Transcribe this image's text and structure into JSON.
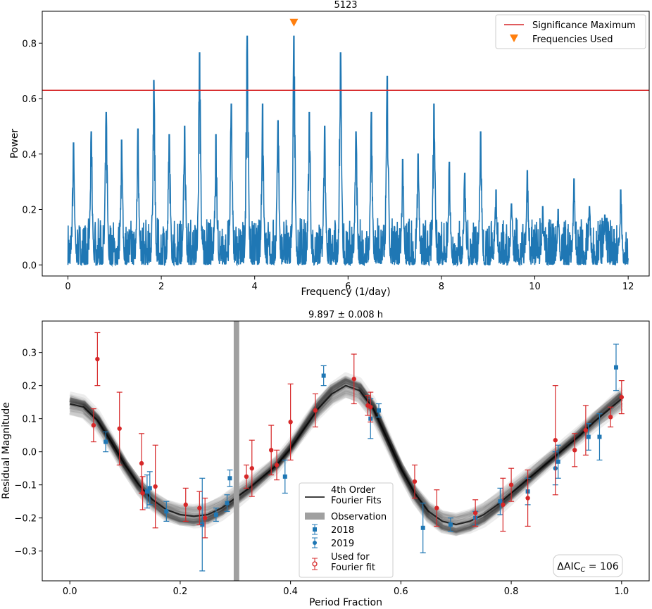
{
  "chart_data": [
    {
      "type": "line",
      "title": "5123",
      "xlabel": "Frequency (1/day)",
      "ylabel": "Power",
      "xlim": [
        -0.55,
        12.45
      ],
      "ylim": [
        -0.04,
        0.915
      ],
      "xticks": [
        0,
        2,
        4,
        6,
        8,
        10,
        12
      ],
      "xtick_labels": [
        "0",
        "2",
        "4",
        "6",
        "8",
        "10",
        "12"
      ],
      "yticks": [
        0.0,
        0.2,
        0.4,
        0.6,
        0.8
      ],
      "ytick_labels": [
        "0.0",
        "0.2",
        "0.4",
        "0.6",
        "0.8"
      ],
      "series_color": "#1f77b4",
      "baseline_max": 0.17,
      "peaks": [
        {
          "x": 0.12,
          "y": 0.44
        },
        {
          "x": 0.5,
          "y": 0.48
        },
        {
          "x": 0.82,
          "y": 0.55
        },
        {
          "x": 1.15,
          "y": 0.45
        },
        {
          "x": 1.5,
          "y": 0.49
        },
        {
          "x": 1.84,
          "y": 0.665
        },
        {
          "x": 2.17,
          "y": 0.47
        },
        {
          "x": 2.5,
          "y": 0.5
        },
        {
          "x": 2.82,
          "y": 0.765
        },
        {
          "x": 3.17,
          "y": 0.47
        },
        {
          "x": 3.5,
          "y": 0.58
        },
        {
          "x": 3.84,
          "y": 0.825
        },
        {
          "x": 4.17,
          "y": 0.58
        },
        {
          "x": 4.5,
          "y": 0.52
        },
        {
          "x": 4.84,
          "y": 0.825
        },
        {
          "x": 5.17,
          "y": 0.55
        },
        {
          "x": 5.5,
          "y": 0.5
        },
        {
          "x": 5.84,
          "y": 0.765
        },
        {
          "x": 6.17,
          "y": 0.48
        },
        {
          "x": 6.5,
          "y": 0.55
        },
        {
          "x": 6.84,
          "y": 0.68
        },
        {
          "x": 7.17,
          "y": 0.38
        },
        {
          "x": 7.5,
          "y": 0.4
        },
        {
          "x": 7.84,
          "y": 0.58
        },
        {
          "x": 8.17,
          "y": 0.37
        },
        {
          "x": 8.5,
          "y": 0.33
        },
        {
          "x": 8.84,
          "y": 0.48
        },
        {
          "x": 9.17,
          "y": 0.27
        },
        {
          "x": 9.5,
          "y": 0.22
        },
        {
          "x": 9.84,
          "y": 0.34
        },
        {
          "x": 10.17,
          "y": 0.21
        },
        {
          "x": 10.5,
          "y": 0.2
        },
        {
          "x": 10.84,
          "y": 0.31
        },
        {
          "x": 11.17,
          "y": 0.21
        },
        {
          "x": 11.5,
          "y": 0.18
        },
        {
          "x": 11.84,
          "y": 0.27
        }
      ],
      "significance_maximum": 0.63,
      "significance_color": "#d62728",
      "frequencies_used": [
        {
          "x": 4.84,
          "y": 0.875
        }
      ],
      "marker_color": "#ff7f0e",
      "legend": {
        "location": "upper right",
        "entries": [
          "Significance Maximum",
          "Frequencies Used"
        ]
      }
    },
    {
      "type": "scatter",
      "title": "9.897 ± 0.008 h",
      "xlabel": "Period Fraction",
      "ylabel": "Residual Magnitude",
      "xlim": [
        -0.05,
        1.05
      ],
      "ylim": [
        -0.39,
        0.395
      ],
      "xticks": [
        0.0,
        0.2,
        0.4,
        0.6,
        0.8,
        1.0
      ],
      "xtick_labels": [
        "0.0",
        "0.2",
        "0.4",
        "0.6",
        "0.8",
        "1.0"
      ],
      "yticks": [
        -0.3,
        -0.2,
        -0.1,
        0.0,
        0.1,
        0.2,
        0.3
      ],
      "ytick_labels": [
        "−0.3",
        "−0.2",
        "−0.1",
        "0.0",
        "0.1",
        "0.2",
        "0.3"
      ],
      "fourier_fit": {
        "order": 4,
        "mean_curve": [
          [
            0.0,
            0.145
          ],
          [
            0.025,
            0.135
          ],
          [
            0.05,
            0.095
          ],
          [
            0.075,
            0.03
          ],
          [
            0.1,
            -0.04
          ],
          [
            0.125,
            -0.1
          ],
          [
            0.15,
            -0.145
          ],
          [
            0.175,
            -0.175
          ],
          [
            0.2,
            -0.19
          ],
          [
            0.225,
            -0.195
          ],
          [
            0.25,
            -0.19
          ],
          [
            0.275,
            -0.17
          ],
          [
            0.3,
            -0.14
          ],
          [
            0.325,
            -0.11
          ],
          [
            0.35,
            -0.075
          ],
          [
            0.375,
            -0.04
          ],
          [
            0.4,
            0.01
          ],
          [
            0.425,
            0.07
          ],
          [
            0.45,
            0.13
          ],
          [
            0.475,
            0.175
          ],
          [
            0.5,
            0.2
          ],
          [
            0.525,
            0.185
          ],
          [
            0.55,
            0.13
          ],
          [
            0.575,
            0.04
          ],
          [
            0.6,
            -0.05
          ],
          [
            0.625,
            -0.125
          ],
          [
            0.65,
            -0.18
          ],
          [
            0.675,
            -0.21
          ],
          [
            0.7,
            -0.22
          ],
          [
            0.725,
            -0.21
          ],
          [
            0.75,
            -0.19
          ],
          [
            0.775,
            -0.16
          ],
          [
            0.8,
            -0.125
          ],
          [
            0.825,
            -0.09
          ],
          [
            0.85,
            -0.055
          ],
          [
            0.875,
            -0.02
          ],
          [
            0.9,
            0.015
          ],
          [
            0.925,
            0.05
          ],
          [
            0.95,
            0.09
          ],
          [
            0.975,
            0.125
          ],
          [
            1.0,
            0.16
          ]
        ],
        "n_draws": 30,
        "spread": 0.025,
        "color": "#000000"
      },
      "observation": {
        "x": [
          0.297,
          0.307
        ],
        "color": "#a0a0a0"
      },
      "series": [
        {
          "name": "2018",
          "marker": "square",
          "color": "#1f77b4",
          "points": [
            {
              "x": 0.065,
              "y": 0.03,
              "err": 0.03
            },
            {
              "x": 0.14,
              "y": -0.12,
              "err": 0.05
            },
            {
              "x": 0.145,
              "y": -0.11,
              "err": 0.05
            },
            {
              "x": 0.175,
              "y": -0.18,
              "err": 0.03
            },
            {
              "x": 0.24,
              "y": -0.22,
              "err": 0.14
            },
            {
              "x": 0.265,
              "y": -0.19,
              "err": 0.02
            },
            {
              "x": 0.285,
              "y": -0.155,
              "err": 0.025
            },
            {
              "x": 0.29,
              "y": -0.08,
              "err": 0.025
            },
            {
              "x": 0.39,
              "y": -0.075,
              "err": 0.05
            },
            {
              "x": 0.46,
              "y": 0.23,
              "err": 0.03
            },
            {
              "x": 0.545,
              "y": 0.1,
              "err": 0.06
            },
            {
              "x": 0.56,
              "y": 0.125,
              "err": 0.02
            },
            {
              "x": 0.64,
              "y": -0.23,
              "err": 0.075
            },
            {
              "x": 0.69,
              "y": -0.22,
              "err": 0.02
            },
            {
              "x": 0.735,
              "y": -0.2,
              "err": 0.02
            },
            {
              "x": 0.78,
              "y": -0.15,
              "err": 0.04
            },
            {
              "x": 0.83,
              "y": -0.12,
              "err": 0.04
            },
            {
              "x": 0.885,
              "y": -0.03,
              "err": 0.05
            },
            {
              "x": 0.94,
              "y": 0.045,
              "err": 0.04
            },
            {
              "x": 0.96,
              "y": 0.045,
              "err": 0.07
            },
            {
              "x": 0.99,
              "y": 0.255,
              "err": 0.07
            }
          ]
        },
        {
          "name": "2019",
          "marker": "circle",
          "color": "#1f77b4",
          "points": [
            {
              "x": 0.88,
              "y": -0.05,
              "err": 0.05
            }
          ]
        },
        {
          "name": "Used for Fourier fit",
          "marker": "circle",
          "color": "#d62728",
          "points": [
            {
              "x": 0.043,
              "y": 0.08,
              "err": 0.05
            },
            {
              "x": 0.05,
              "y": 0.28,
              "err": 0.08
            },
            {
              "x": 0.09,
              "y": 0.07,
              "err": 0.11
            },
            {
              "x": 0.13,
              "y": -0.035,
              "err": 0.09
            },
            {
              "x": 0.132,
              "y": -0.125,
              "err": 0.05
            },
            {
              "x": 0.155,
              "y": -0.105,
              "err": 0.125
            },
            {
              "x": 0.21,
              "y": -0.16,
              "err": 0.05
            },
            {
              "x": 0.235,
              "y": -0.17,
              "err": 0.05
            },
            {
              "x": 0.245,
              "y": -0.2,
              "err": 0.06
            },
            {
              "x": 0.32,
              "y": -0.075,
              "err": 0.035
            },
            {
              "x": 0.33,
              "y": -0.05,
              "err": 0.085
            },
            {
              "x": 0.365,
              "y": 0.005,
              "err": 0.075
            },
            {
              "x": 0.375,
              "y": -0.04,
              "err": 0.045
            },
            {
              "x": 0.4,
              "y": 0.09,
              "err": 0.115
            },
            {
              "x": 0.445,
              "y": 0.125,
              "err": 0.05
            },
            {
              "x": 0.515,
              "y": 0.22,
              "err": 0.075
            },
            {
              "x": 0.54,
              "y": 0.14,
              "err": 0.03
            },
            {
              "x": 0.545,
              "y": 0.135,
              "err": 0.045
            },
            {
              "x": 0.625,
              "y": -0.09,
              "err": 0.05
            },
            {
              "x": 0.665,
              "y": -0.17,
              "err": 0.055
            },
            {
              "x": 0.735,
              "y": -0.185,
              "err": 0.04
            },
            {
              "x": 0.785,
              "y": -0.16,
              "err": 0.08
            },
            {
              "x": 0.8,
              "y": -0.1,
              "err": 0.05
            },
            {
              "x": 0.83,
              "y": -0.14,
              "err": 0.085
            },
            {
              "x": 0.88,
              "y": 0.035,
              "err": 0.165
            },
            {
              "x": 0.915,
              "y": 0.005,
              "err": 0.05
            },
            {
              "x": 0.935,
              "y": 0.065,
              "err": 0.075
            },
            {
              "x": 0.98,
              "y": 0.105,
              "err": 0.03
            },
            {
              "x": 1.0,
              "y": 0.165,
              "err": 0.05
            }
          ]
        }
      ],
      "legend": {
        "location": "lower center",
        "entries": [
          "4th Order\n Fourier Fits",
          "Observation",
          "2018",
          "2019",
          "Used for\n Fourier fit"
        ]
      },
      "annotation": {
        "text": "ΔAIC",
        "subscript": "C",
        "suffix": " = 106"
      }
    }
  ]
}
